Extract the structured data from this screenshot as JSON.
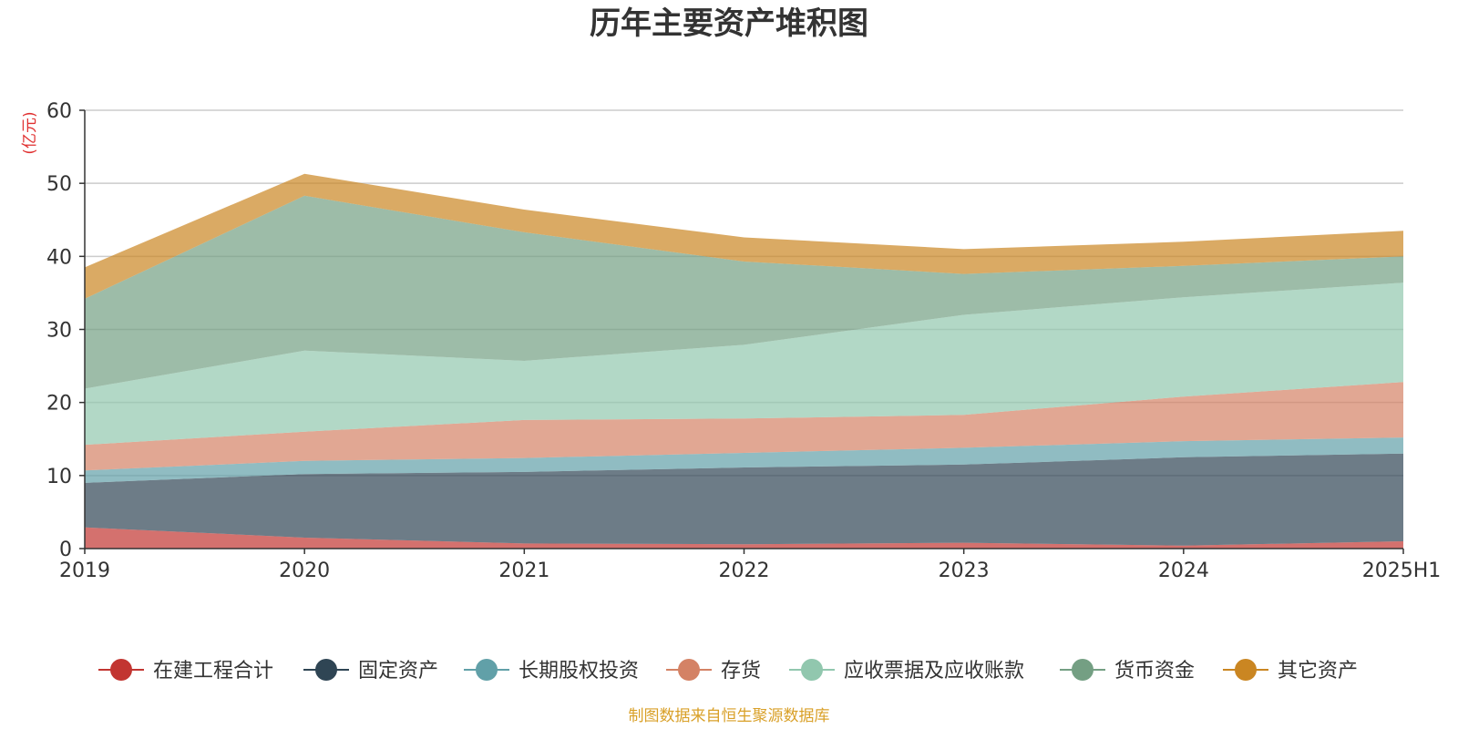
{
  "chart_data": {
    "type": "area",
    "stacked": true,
    "title": "历年主要资产堆积图",
    "unit_label": "(亿元)",
    "x": [
      "2019",
      "2020",
      "2021",
      "2022",
      "2023",
      "2024",
      "2025H1"
    ],
    "ylim": [
      0,
      60
    ],
    "yticks": [
      "0",
      "10",
      "20",
      "30",
      "40",
      "50",
      "60"
    ],
    "grid": true,
    "legend_position": "bottom",
    "series": [
      {
        "name": "在建工程合计",
        "color": "#c23531",
        "values": [
          2.9,
          1.5,
          0.7,
          0.6,
          0.8,
          0.4,
          1.0
        ]
      },
      {
        "name": "固定资产",
        "color": "#2f4554",
        "values": [
          6.1,
          8.7,
          9.8,
          10.5,
          10.7,
          12.1,
          12.0
        ]
      },
      {
        "name": "长期股权投资",
        "color": "#61a0a8",
        "values": [
          1.7,
          1.8,
          1.9,
          2.0,
          2.3,
          2.2,
          2.2
        ]
      },
      {
        "name": "存货",
        "color": "#d48265",
        "values": [
          3.5,
          4.0,
          5.2,
          4.7,
          4.5,
          6.1,
          7.6
        ]
      },
      {
        "name": "应收票据及应收账款",
        "color": "#91c7ae",
        "values": [
          7.7,
          11.1,
          8.1,
          10.1,
          13.7,
          13.6,
          13.6
        ]
      },
      {
        "name": "货币资金",
        "color": "#749f83",
        "values": [
          12.3,
          21.2,
          17.6,
          11.4,
          5.6,
          4.3,
          3.6
        ]
      },
      {
        "name": "其它资产",
        "color": "#ca8622",
        "values": [
          4.3,
          3.0,
          3.1,
          3.3,
          3.4,
          3.3,
          3.5
        ]
      }
    ]
  },
  "source_note": "制图数据来自恒生聚源数据库"
}
